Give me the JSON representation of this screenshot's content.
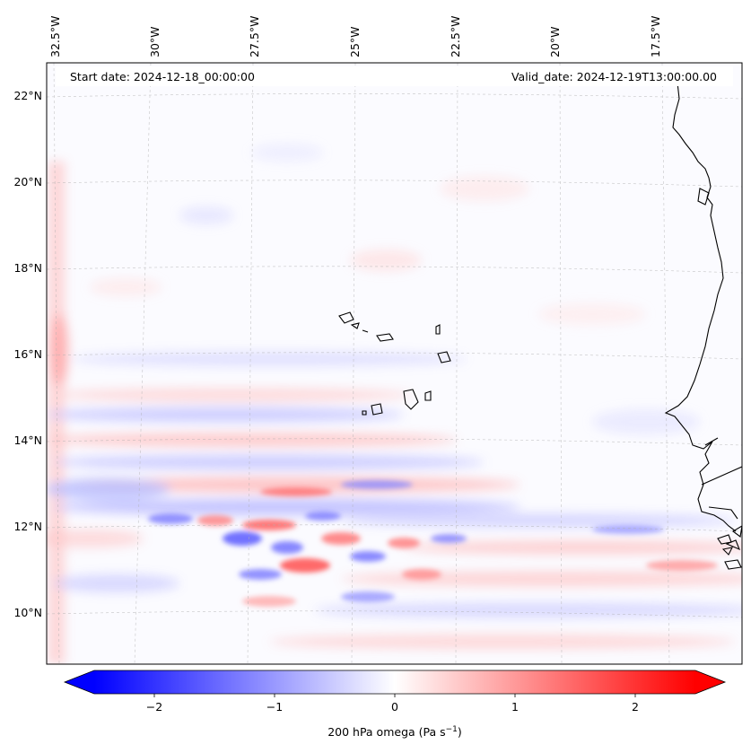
{
  "header": {
    "start_date": "Start date: 2024-12-18_00:00:00",
    "valid_date": "Valid_date: 2024-12-19T13:00:00.00"
  },
  "map": {
    "lon_labels": [
      "32.5°W",
      "30°W",
      "27.5°W",
      "25°W",
      "22.5°W",
      "20°W",
      "17.5°W"
    ],
    "lat_labels": [
      "22°N",
      "20°N",
      "18°N",
      "16°N",
      "14°N",
      "12°N",
      "10°N"
    ]
  },
  "colorbar": {
    "tick_labels": [
      "−2",
      "−1",
      "0",
      "1",
      "2"
    ],
    "tick_values": [
      -2,
      -1,
      0,
      1,
      2
    ],
    "range": [
      -2.5,
      2.5
    ],
    "label": "200 hPa omega (Pa s",
    "label_sup": "−1",
    "label_end": ")",
    "low_color": "#0000ff",
    "mid_color": "#ffffff",
    "high_color": "#ff0000"
  }
}
